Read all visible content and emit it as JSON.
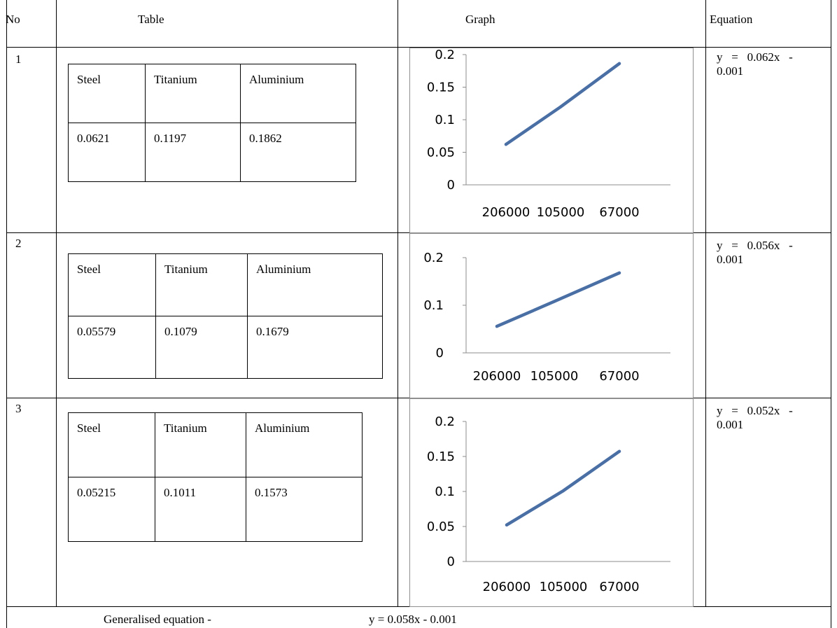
{
  "headers": {
    "no": "No",
    "table": "Table",
    "graph": "Graph",
    "equation": "Equation"
  },
  "rows": [
    {
      "no": "1",
      "table": {
        "labels": [
          "Steel",
          "Titanium",
          "Aluminium"
        ],
        "values": [
          "0.0621",
          "0.1197",
          "0.1862"
        ]
      },
      "equation": {
        "line1": "y   =   0.062x   -",
        "line2": "0.001"
      }
    },
    {
      "no": "2",
      "table": {
        "labels": [
          "Steel",
          "Titanium",
          "Aluminium"
        ],
        "values": [
          "0.05579",
          "0.1079",
          "0.1679"
        ]
      },
      "equation": {
        "line1": "y   =   0.056x   -",
        "line2": "0.001"
      }
    },
    {
      "no": "3",
      "table": {
        "labels": [
          "Steel",
          "Titanium",
          "Aluminium"
        ],
        "values": [
          "0.05215",
          "0.1011",
          "0.1573"
        ]
      },
      "equation": {
        "line1": "y   =   0.052x   -",
        "line2": "0.001"
      }
    }
  ],
  "footer": {
    "label": "Generalised equation -",
    "equation": "y = 0.058x - 0.001"
  },
  "chart_data": [
    {
      "type": "line",
      "categories": [
        "206000",
        "105000",
        "67000"
      ],
      "series": [
        {
          "values": [
            0.0621,
            0.1197,
            0.1862
          ],
          "color": "#4a6fa5"
        }
      ],
      "yticks": [
        "0",
        "0.05",
        "0.1",
        "0.15",
        "0.2"
      ],
      "ylim": [
        0,
        0.2
      ],
      "grid": false,
      "legend": "none"
    },
    {
      "type": "line",
      "categories": [
        "206000",
        "105000",
        "67000"
      ],
      "series": [
        {
          "values": [
            0.05579,
            0.1079,
            0.1679
          ],
          "color": "#4a6fa5"
        }
      ],
      "yticks": [
        "0",
        "0.1",
        "0.2"
      ],
      "ylim": [
        0,
        0.2
      ],
      "grid": false,
      "legend": "none"
    },
    {
      "type": "line",
      "categories": [
        "206000",
        "105000",
        "67000"
      ],
      "series": [
        {
          "values": [
            0.05215,
            0.1011,
            0.1573
          ],
          "color": "#4a6fa5"
        }
      ],
      "yticks": [
        "0",
        "0.05",
        "0.1",
        "0.15",
        "0.2"
      ],
      "ylim": [
        0,
        0.2
      ],
      "grid": false,
      "legend": "none"
    }
  ]
}
